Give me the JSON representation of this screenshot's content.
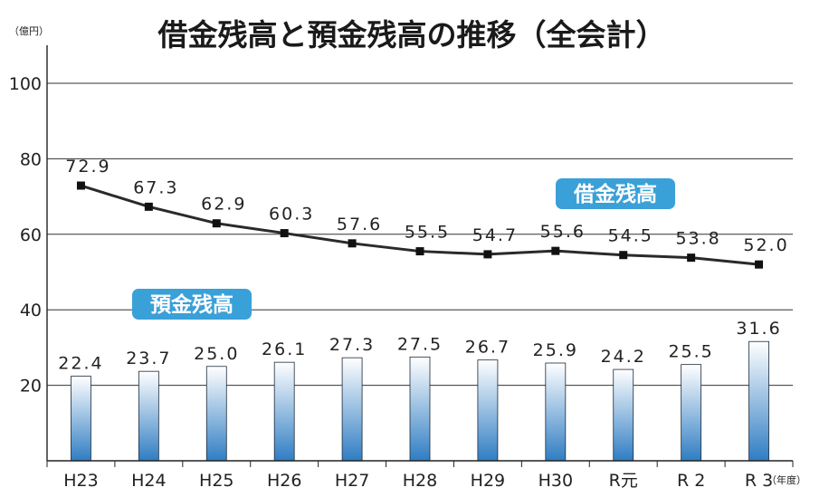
{
  "chart_data": {
    "type": "bar+line",
    "title": "借金残高と預金残高の推移（全会計）",
    "y_unit_label": "（億円）",
    "x_unit_label": "（年度）",
    "categories": [
      "H23",
      "H24",
      "H25",
      "H26",
      "H27",
      "H28",
      "H29",
      "H30",
      "R元",
      "R 2",
      "R 3"
    ],
    "ylim": [
      0,
      100
    ],
    "yticks": [
      20,
      40,
      60,
      80,
      100
    ],
    "grid": true,
    "series": [
      {
        "name": "借金残高",
        "type": "line",
        "values": [
          72.9,
          67.3,
          62.9,
          60.3,
          57.6,
          55.5,
          54.7,
          55.6,
          54.5,
          53.8,
          52.0
        ],
        "labels": [
          "72.9",
          "67.3",
          "62.9",
          "60.3",
          "57.6",
          "55.5",
          "54.7",
          "55.6",
          "54.5",
          "53.8",
          "52.0"
        ],
        "color": "#2a2a2a"
      },
      {
        "name": "預金残高",
        "type": "bar",
        "values": [
          22.4,
          23.7,
          25.0,
          26.1,
          27.3,
          27.5,
          26.7,
          25.9,
          24.2,
          25.5,
          31.6
        ],
        "labels": [
          "22.4",
          "23.7",
          "25.0",
          "26.1",
          "27.3",
          "27.5",
          "26.7",
          "25.9",
          "24.2",
          "25.5",
          "31.6"
        ],
        "color_top": "#ffffff",
        "color_bottom": "#2f7dc3"
      }
    ],
    "tag_color": "#3aa0d8"
  }
}
